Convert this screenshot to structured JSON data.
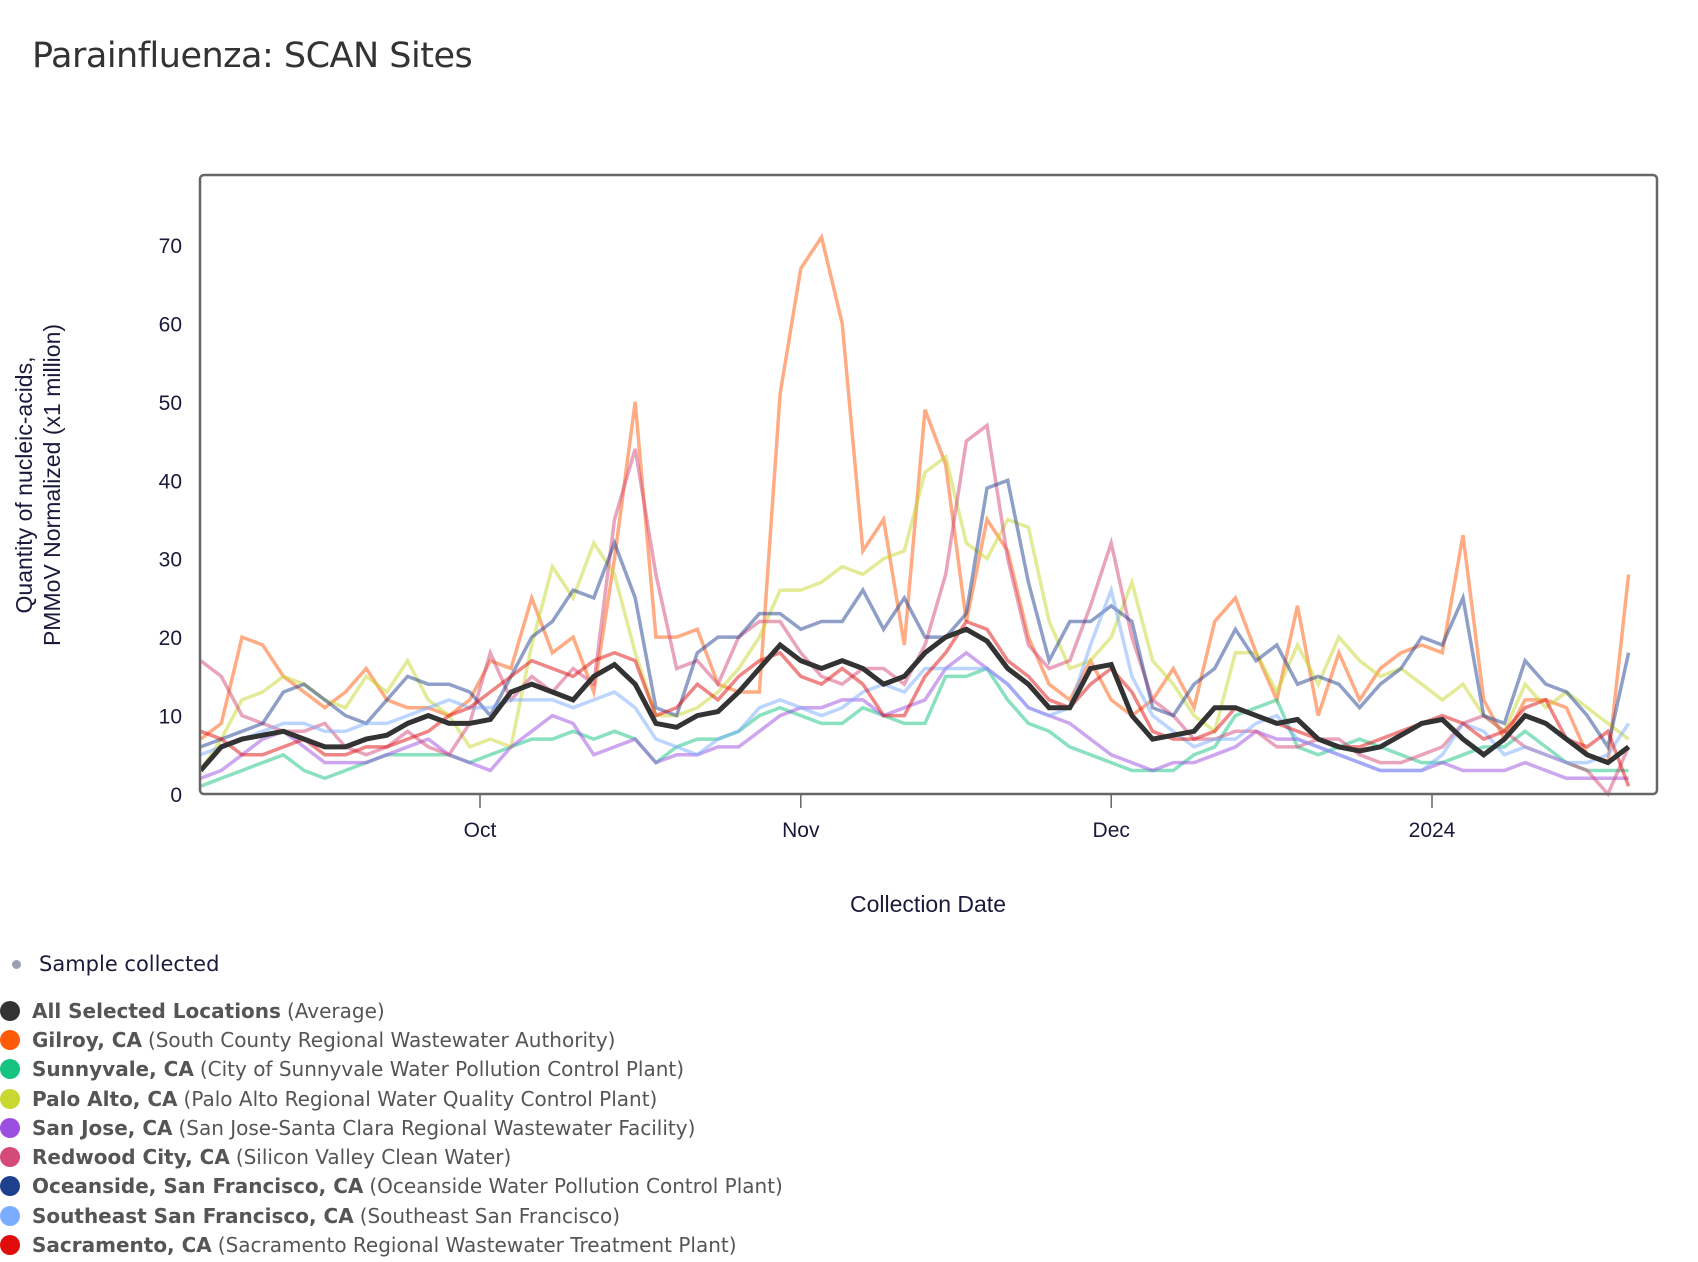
{
  "title": "Parainfluenza: SCAN Sites",
  "legend": {
    "sample_label": "Sample collected",
    "sample_color": "#9aa0b0",
    "items": [
      {
        "name": "All Selected Locations",
        "detail": "(Average)",
        "color": "#333333"
      },
      {
        "name": "Gilroy, CA",
        "detail": "(South County Regional Wastewater Authority)",
        "color": "#ff5a0a"
      },
      {
        "name": "Sunnyvale, CA",
        "detail": "(City of Sunnyvale Water Pollution Control Plant)",
        "color": "#16c47f"
      },
      {
        "name": "Palo Alto, CA",
        "detail": "(Palo Alto Regional Water Quality Control Plant)",
        "color": "#c8d830"
      },
      {
        "name": "San Jose, CA",
        "detail": "(San Jose-Santa Clara Regional Wastewater Facility)",
        "color": "#9b4de0"
      },
      {
        "name": "Redwood City, CA",
        "detail": "(Silicon Valley Clean Water)",
        "color": "#d44a78"
      },
      {
        "name": "Oceanside, San Francisco, CA",
        "detail": "(Oceanside Water Pollution Control Plant)",
        "color": "#1f3f8f"
      },
      {
        "name": "Southeast San Francisco, CA",
        "detail": "(Southeast San Francisco)",
        "color": "#7aacff"
      },
      {
        "name": "Sacramento, CA",
        "detail": "(Sacramento Regional Wastewater Treatment Plant)",
        "color": "#e00b0b"
      }
    ]
  },
  "chart_data": {
    "type": "line",
    "title": "Parainfluenza: SCAN Sites",
    "xlabel": "Collection Date",
    "ylabel": "Quantity of nucleic-acids, PMMoV Normalized (x1 million)",
    "ylabel_lines": [
      "Quantity of nucleic-acids,",
      "PMMoV Normalized (x1 million)"
    ],
    "ylim": [
      0,
      78
    ],
    "yticks": [
      0,
      10,
      20,
      30,
      40,
      50,
      60,
      70
    ],
    "xlim": [
      "2023-09-04",
      "2024-01-23"
    ],
    "xticks": [
      {
        "date": "2023-10-01",
        "label": "Oct"
      },
      {
        "date": "2023-11-01",
        "label": "Nov"
      },
      {
        "date": "2023-12-01",
        "label": "Dec"
      },
      {
        "date": "2024-01-01",
        "label": "2024"
      }
    ],
    "grid": false,
    "legend_position": "bottom",
    "x_start": "2023-09-04",
    "x_step_days": 2,
    "series": [
      {
        "name": "Gilroy, CA",
        "color": "#ff5a0a",
        "values": [
          7,
          9,
          20,
          19,
          15,
          13,
          11,
          13,
          16,
          12,
          11,
          11,
          10,
          12,
          17,
          16,
          25,
          18,
          20,
          13,
          30,
          50,
          20,
          20,
          21,
          14,
          13,
          13,
          51,
          67,
          71,
          60,
          31,
          35,
          19,
          49,
          42,
          22,
          35,
          31,
          20,
          14,
          12,
          17,
          12,
          10,
          12,
          16,
          11,
          22,
          25,
          18,
          12,
          24,
          10,
          18,
          12,
          16,
          18,
          19,
          18,
          33,
          12,
          7,
          12,
          12,
          11,
          5,
          4,
          28
        ]
      },
      {
        "name": "Sunnyvale, CA",
        "color": "#16c47f",
        "values": [
          1,
          2,
          3,
          4,
          5,
          3,
          2,
          3,
          4,
          5,
          5,
          5,
          5,
          4,
          5,
          6,
          7,
          7,
          8,
          7,
          8,
          7,
          4,
          6,
          7,
          7,
          8,
          10,
          11,
          10,
          9,
          9,
          11,
          10,
          9,
          9,
          15,
          15,
          16,
          12,
          9,
          8,
          6,
          5,
          4,
          3,
          3,
          3,
          5,
          6,
          10,
          11,
          12,
          6,
          5,
          6,
          7,
          6,
          5,
          4,
          4,
          5,
          6,
          6,
          8,
          6,
          4,
          3,
          3,
          3
        ]
      },
      {
        "name": "Palo Alto, CA",
        "color": "#c8d830",
        "values": [
          3,
          7,
          12,
          13,
          15,
          14,
          12,
          11,
          15,
          13,
          17,
          12,
          10,
          6,
          7,
          6,
          19,
          29,
          25,
          32,
          28,
          18,
          10,
          10,
          11,
          13,
          16,
          20,
          26,
          26,
          27,
          29,
          28,
          30,
          31,
          41,
          43,
          32,
          30,
          35,
          34,
          22,
          16,
          17,
          20,
          27,
          17,
          14,
          10,
          8,
          18,
          18,
          13,
          19,
          14,
          20,
          17,
          15,
          16,
          14,
          12,
          14,
          10,
          8,
          14,
          11,
          13,
          11,
          9,
          7
        ]
      },
      {
        "name": "San Jose, CA",
        "color": "#9b4de0",
        "values": [
          2,
          3,
          5,
          7,
          8,
          6,
          4,
          4,
          4,
          5,
          6,
          7,
          5,
          4,
          3,
          6,
          8,
          10,
          9,
          5,
          6,
          7,
          4,
          5,
          5,
          6,
          6,
          8,
          10,
          11,
          11,
          12,
          12,
          10,
          11,
          12,
          16,
          18,
          16,
          14,
          11,
          10,
          9,
          7,
          5,
          4,
          3,
          4,
          4,
          5,
          6,
          8,
          7,
          7,
          6,
          5,
          4,
          3,
          3,
          3,
          4,
          3,
          3,
          3,
          4,
          3,
          2,
          2,
          2,
          2
        ]
      },
      {
        "name": "Redwood City, CA",
        "color": "#d44a78",
        "values": [
          17,
          15,
          10,
          9,
          8,
          8,
          9,
          6,
          5,
          6,
          8,
          6,
          5,
          9,
          18,
          12,
          15,
          13,
          16,
          14,
          35,
          44,
          28,
          16,
          17,
          14,
          20,
          22,
          22,
          18,
          15,
          14,
          16,
          16,
          14,
          19,
          28,
          45,
          47,
          30,
          19,
          16,
          17,
          24,
          32,
          20,
          12,
          10,
          7,
          7,
          8,
          8,
          6,
          6,
          7,
          7,
          5,
          4,
          4,
          5,
          6,
          9,
          10,
          8,
          6,
          5,
          4,
          3,
          0,
          6
        ]
      },
      {
        "name": "Oceanside, San Francisco, CA",
        "color": "#1f3f8f",
        "values": [
          6,
          7,
          8,
          9,
          13,
          14,
          12,
          10,
          9,
          12,
          15,
          14,
          14,
          13,
          10,
          15,
          20,
          22,
          26,
          25,
          32,
          25,
          11,
          10,
          18,
          20,
          20,
          23,
          23,
          21,
          22,
          22,
          26,
          21,
          25,
          20,
          20,
          23,
          39,
          40,
          27,
          17,
          22,
          22,
          24,
          22,
          11,
          10,
          14,
          16,
          21,
          17,
          19,
          14,
          15,
          14,
          11,
          14,
          16,
          20,
          19,
          25,
          10,
          9,
          17,
          14,
          13,
          10,
          6,
          18
        ]
      },
      {
        "name": "Southeast San Francisco, CA",
        "color": "#7aacff",
        "values": [
          5,
          6,
          7,
          8,
          9,
          9,
          8,
          8,
          9,
          9,
          10,
          11,
          12,
          11,
          11,
          12,
          12,
          12,
          11,
          12,
          13,
          11,
          7,
          6,
          5,
          7,
          8,
          11,
          12,
          11,
          10,
          11,
          13,
          14,
          13,
          16,
          16,
          16,
          16,
          14,
          11,
          10,
          11,
          19,
          26,
          15,
          10,
          8,
          6,
          7,
          7,
          9,
          10,
          7,
          6,
          5,
          4,
          3,
          3,
          3,
          5,
          9,
          8,
          5,
          6,
          5,
          4,
          4,
          5,
          9
        ]
      },
      {
        "name": "Sacramento, CA",
        "color": "#e00b0b",
        "values": [
          8,
          7,
          5,
          5,
          6,
          7,
          5,
          5,
          6,
          6,
          7,
          8,
          10,
          11,
          13,
          15,
          17,
          16,
          15,
          17,
          18,
          17,
          10,
          11,
          14,
          12,
          15,
          17,
          18,
          15,
          14,
          16,
          14,
          10,
          10,
          15,
          18,
          22,
          21,
          17,
          15,
          12,
          11,
          14,
          16,
          13,
          8,
          7,
          7,
          8,
          11,
          10,
          9,
          8,
          7,
          6,
          6,
          7,
          8,
          9,
          10,
          9,
          7,
          8,
          11,
          12,
          7,
          6,
          8,
          1
        ]
      },
      {
        "name": "All Selected Locations (Average)",
        "color": "#333333",
        "values": [
          3,
          6,
          7,
          7.5,
          8,
          7,
          6,
          6,
          7,
          7.5,
          9,
          10,
          9,
          9,
          9.5,
          13,
          14,
          13,
          12,
          15,
          16.5,
          14,
          9,
          8.5,
          10,
          10.5,
          13,
          16,
          19,
          17,
          16,
          17,
          16,
          14,
          15,
          18,
          20,
          21,
          19.5,
          16,
          14,
          11,
          11,
          16,
          16.5,
          10,
          7,
          7.5,
          8,
          11,
          11,
          10,
          9,
          9.5,
          7,
          6,
          5.5,
          6,
          7.5,
          9,
          9.5,
          7,
          5,
          7,
          10,
          9,
          7,
          5,
          4,
          6
        ]
      }
    ]
  }
}
